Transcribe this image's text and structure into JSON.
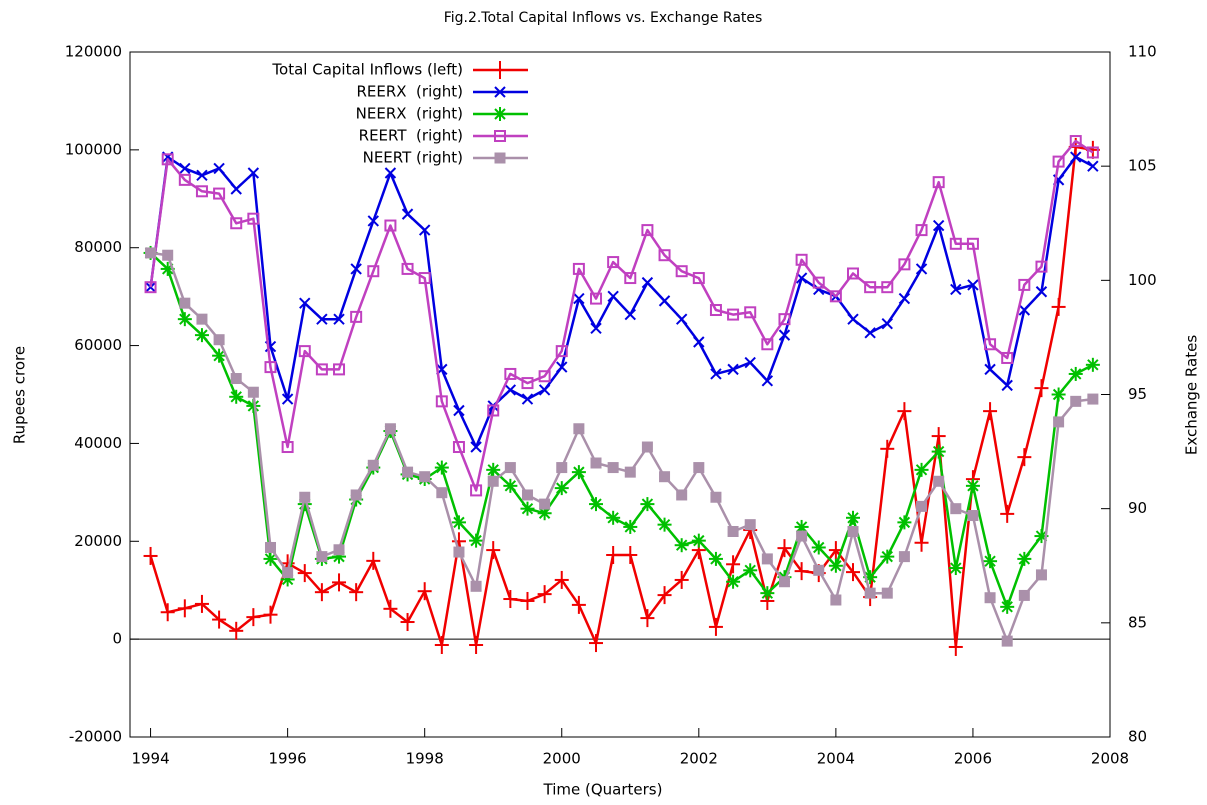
{
  "chart_data": {
    "type": "line",
    "title": "Fig.2.Total Capital Inflows vs. Exchange Rates",
    "x_label": "Time (Quarters)",
    "y_label": "Rupees crore",
    "y2_label": "Exchange Rates",
    "x": [
      1994,
      1994.25,
      1994.5,
      1994.75,
      1995,
      1995.25,
      1995.5,
      1995.75,
      1996,
      1996.25,
      1996.5,
      1996.75,
      1997,
      1997.25,
      1997.5,
      1997.75,
      1998,
      1998.25,
      1998.5,
      1998.75,
      1999,
      1999.25,
      1999.5,
      1999.75,
      2000,
      2000.25,
      2000.5,
      2000.75,
      2001,
      2001.25,
      2001.5,
      2001.75,
      2002,
      2002.25,
      2002.5,
      2002.75,
      2003,
      2003.25,
      2003.5,
      2003.75,
      2004,
      2004.25,
      2004.5,
      2004.75,
      2005,
      2005.25,
      2005.5,
      2005.75,
      2006,
      2006.25,
      2006.5,
      2006.75,
      2007,
      2007.25,
      2007.5,
      2007.75
    ],
    "xlim": [
      1993.7,
      2008
    ],
    "xticks": [
      1994,
      1996,
      1998,
      2000,
      2002,
      2004,
      2006,
      2008
    ],
    "ylim": [
      -20000,
      120000
    ],
    "yticks": [
      -20000,
      0,
      20000,
      40000,
      60000,
      80000,
      100000,
      120000
    ],
    "y2lim": [
      80,
      110
    ],
    "y2ticks": [
      80,
      85,
      90,
      95,
      100,
      105,
      110
    ],
    "legend": "top-left",
    "series": [
      {
        "name": "Total Capital Inflows (left)",
        "color": "#f00000",
        "marker": "plus",
        "values": [
          17000,
          5500,
          6300,
          7200,
          4000,
          1700,
          4500,
          5000,
          15500,
          13500,
          9600,
          11600,
          9600,
          16000,
          6200,
          3500,
          9800,
          -1200,
          20000,
          -1200,
          18200,
          8200,
          7800,
          9200,
          12100,
          7000,
          -800,
          17200,
          17200,
          4300,
          9000,
          12100,
          18200,
          2500,
          15300,
          22300,
          7800,
          18600,
          13900,
          13500,
          18200,
          13700,
          8600,
          38900,
          46600,
          19700,
          41500,
          -1600,
          32700,
          46600,
          25600,
          37200,
          51300,
          67900,
          100600,
          100000
        ]
      },
      {
        "name": "REERX  (right)",
        "color": "#0000e0",
        "marker": "cross",
        "axis": "y2",
        "values": [
          99.7,
          105.4,
          104.9,
          104.6,
          104.9,
          104.0,
          104.7,
          97.1,
          94.8,
          99.0,
          98.3,
          98.3,
          100.5,
          102.6,
          104.7,
          102.9,
          102.2,
          96.1,
          94.3,
          92.7,
          94.5,
          95.2,
          94.8,
          95.2,
          96.2,
          99.2,
          97.9,
          99.3,
          98.5,
          99.9,
          99.1,
          98.3,
          97.3,
          95.9,
          96.1,
          96.4,
          95.6,
          97.6,
          100.1,
          99.6,
          99.3,
          98.3,
          97.7,
          98.1,
          99.2,
          100.5,
          102.4,
          99.6,
          99.8,
          96.1,
          95.4,
          98.7,
          99.5,
          104.4,
          105.4,
          105.0
        ]
      },
      {
        "name": "NEERX  (right)",
        "color": "#00c000",
        "marker": "star",
        "axis": "y2",
        "values": [
          101.2,
          100.5,
          98.3,
          97.6,
          96.7,
          94.9,
          94.5,
          87.8,
          86.9,
          90.2,
          87.8,
          87.9,
          90.4,
          91.8,
          93.4,
          91.5,
          91.3,
          91.8,
          89.4,
          88.6,
          91.7,
          91.0,
          90.0,
          89.8,
          90.9,
          91.6,
          90.2,
          89.6,
          89.2,
          90.2,
          89.3,
          88.4,
          88.6,
          87.8,
          86.8,
          87.3,
          86.3,
          87.0,
          89.2,
          88.3,
          87.5,
          89.6,
          87.0,
          87.9,
          89.4,
          91.7,
          92.5,
          87.4,
          91.0,
          87.7,
          85.7,
          87.8,
          88.8,
          95.0,
          95.9,
          96.3
        ]
      },
      {
        "name": "REERT  (right)",
        "color": "#c040c0",
        "marker": "open-square",
        "axis": "y2",
        "values": [
          99.7,
          105.3,
          104.4,
          103.9,
          103.8,
          102.5,
          102.7,
          96.2,
          92.7,
          96.9,
          96.1,
          96.1,
          98.4,
          100.4,
          102.4,
          100.5,
          100.1,
          94.7,
          92.7,
          90.8,
          94.3,
          95.9,
          95.5,
          95.8,
          96.9,
          100.5,
          99.2,
          100.8,
          100.1,
          102.2,
          101.1,
          100.4,
          100.1,
          98.7,
          98.5,
          98.6,
          97.2,
          98.3,
          100.9,
          99.9,
          99.3,
          100.3,
          99.7,
          99.7,
          100.7,
          102.2,
          104.3,
          101.6,
          101.6,
          97.2,
          96.6,
          99.8,
          100.6,
          105.2,
          106.1,
          105.6
        ]
      },
      {
        "name": "NEERT (right)",
        "color": "#aa90aa",
        "marker": "filled-square",
        "axis": "y2",
        "values": [
          101.2,
          101.1,
          99.0,
          98.3,
          97.4,
          95.7,
          95.1,
          88.3,
          87.2,
          90.5,
          87.9,
          88.2,
          90.6,
          91.9,
          93.5,
          91.6,
          91.4,
          90.7,
          88.1,
          86.6,
          91.2,
          91.8,
          90.6,
          90.2,
          91.8,
          93.5,
          92.0,
          91.8,
          91.6,
          92.7,
          91.4,
          90.6,
          91.8,
          90.5,
          89.0,
          89.3,
          87.8,
          86.8,
          88.8,
          87.3,
          86.0,
          89.0,
          86.3,
          86.3,
          87.9,
          90.1,
          91.2,
          90.0,
          89.7,
          86.1,
          84.2,
          86.2,
          87.1,
          93.8,
          94.7,
          94.8
        ]
      }
    ]
  }
}
